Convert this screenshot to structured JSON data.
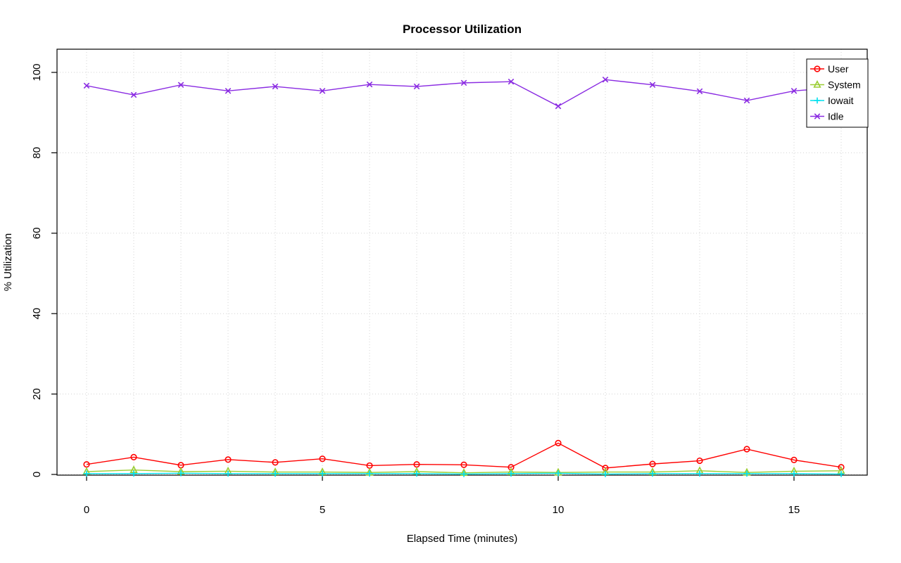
{
  "chart_data": {
    "type": "line",
    "title": "Processor Utilization",
    "xlabel": "Elapsed Time (minutes)",
    "ylabel": "% Utilization",
    "x": [
      0,
      1,
      2,
      3,
      4,
      5,
      6,
      7,
      8,
      9,
      10,
      11,
      12,
      13,
      14,
      15,
      16
    ],
    "xlim": [
      0,
      16
    ],
    "ylim": [
      0,
      100
    ],
    "xticks": [
      0,
      5,
      10,
      15
    ],
    "yticks": [
      0,
      20,
      40,
      60,
      80,
      100
    ],
    "grid": true,
    "grid_style": "dotted",
    "grid_color": "#d3d3d3",
    "x_grid_interval": 1,
    "legend_position": "top-right",
    "series": [
      {
        "name": "User",
        "color": "#ff0000",
        "marker": "circle",
        "values": [
          2.5,
          4.3,
          2.3,
          3.7,
          3.0,
          3.9,
          2.2,
          2.5,
          2.4,
          1.8,
          7.8,
          1.6,
          2.6,
          3.4,
          6.3,
          3.6,
          1.8
        ]
      },
      {
        "name": "System",
        "color": "#9acd32",
        "marker": "triangle",
        "values": [
          0.7,
          1.1,
          0.7,
          0.8,
          0.6,
          0.6,
          0.5,
          0.7,
          0.4,
          0.6,
          0.5,
          0.6,
          0.6,
          0.9,
          0.5,
          0.8,
          0.9
        ]
      },
      {
        "name": "Iowait",
        "color": "#00e0ee",
        "marker": "plus",
        "values": [
          0.2,
          0.2,
          0.3,
          0.2,
          0.2,
          0.2,
          0.2,
          0.2,
          0.1,
          0.2,
          0.3,
          0.1,
          0.2,
          0.2,
          0.2,
          0.2,
          0.1
        ]
      },
      {
        "name": "Idle",
        "color": "#8a2be2",
        "marker": "x",
        "values": [
          96.7,
          94.4,
          96.9,
          95.4,
          96.5,
          95.4,
          97.0,
          96.5,
          97.4,
          97.7,
          91.6,
          98.2,
          96.9,
          95.3,
          93.0,
          95.4,
          96.3
        ]
      }
    ]
  }
}
